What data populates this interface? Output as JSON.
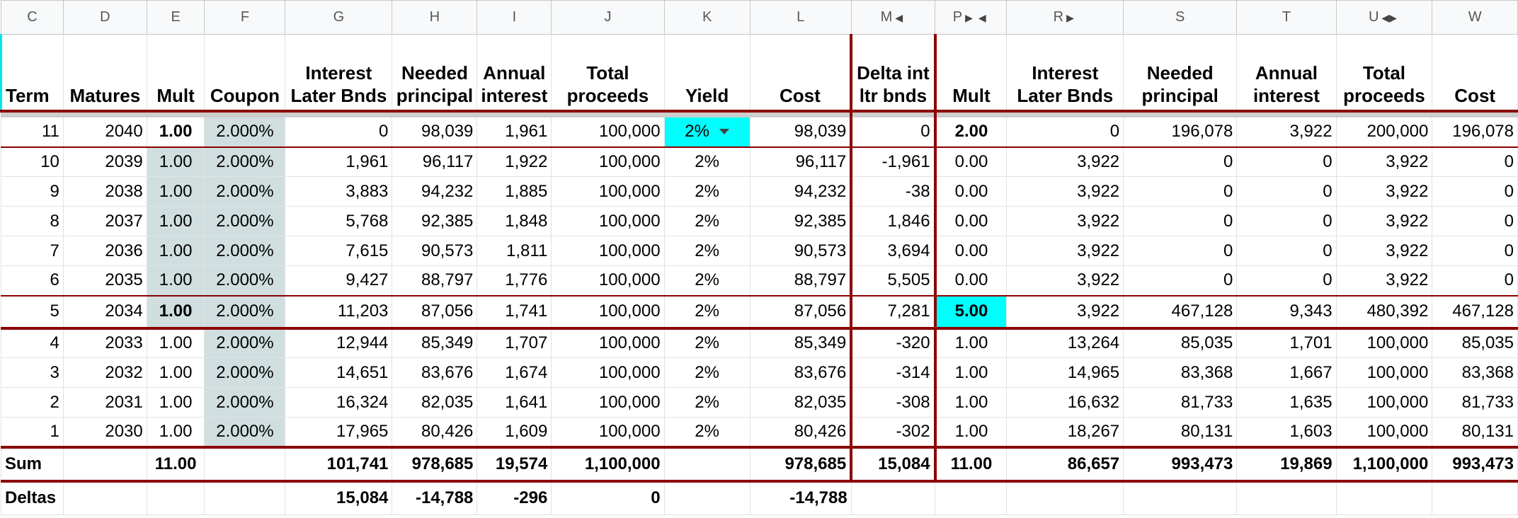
{
  "column_letters": [
    "C",
    "D",
    "E",
    "F",
    "G",
    "H",
    "I",
    "J",
    "K",
    "L",
    "M",
    "P",
    "R",
    "S",
    "T",
    "U",
    "W"
  ],
  "header_labels": [
    "Term",
    "Matures",
    "Mult",
    "Coupon",
    "Interest Later Bnds",
    "Needed principal",
    "Annual interest",
    "Total proceeds",
    "Yield",
    "Cost",
    "Delta int ltr bnds",
    "Mult",
    "Interest Later Bnds",
    "Needed principal",
    "Annual interest",
    "Total proceeds",
    "Cost"
  ],
  "rows": [
    {
      "term": "11",
      "matures": "2040",
      "mult": "1.00",
      "coupon": "2.000%",
      "interest": "0",
      "needed": "98,039",
      "annual": "1,961",
      "total": "100,000",
      "yield": "2%",
      "cost": "98,039",
      "delta": "0",
      "mult2": "2.00",
      "interest2": "0",
      "needed2": "196,078",
      "annual2": "3,922",
      "total2": "200,000",
      "cost2": "196,078"
    },
    {
      "term": "10",
      "matures": "2039",
      "mult": "1.00",
      "coupon": "2.000%",
      "interest": "1,961",
      "needed": "96,117",
      "annual": "1,922",
      "total": "100,000",
      "yield": "2%",
      "cost": "96,117",
      "delta": "-1,961",
      "mult2": "0.00",
      "interest2": "3,922",
      "needed2": "0",
      "annual2": "0",
      "total2": "3,922",
      "cost2": "0"
    },
    {
      "term": "9",
      "matures": "2038",
      "mult": "1.00",
      "coupon": "2.000%",
      "interest": "3,883",
      "needed": "94,232",
      "annual": "1,885",
      "total": "100,000",
      "yield": "2%",
      "cost": "94,232",
      "delta": "-38",
      "mult2": "0.00",
      "interest2": "3,922",
      "needed2": "0",
      "annual2": "0",
      "total2": "3,922",
      "cost2": "0"
    },
    {
      "term": "8",
      "matures": "2037",
      "mult": "1.00",
      "coupon": "2.000%",
      "interest": "5,768",
      "needed": "92,385",
      "annual": "1,848",
      "total": "100,000",
      "yield": "2%",
      "cost": "92,385",
      "delta": "1,846",
      "mult2": "0.00",
      "interest2": "3,922",
      "needed2": "0",
      "annual2": "0",
      "total2": "3,922",
      "cost2": "0"
    },
    {
      "term": "7",
      "matures": "2036",
      "mult": "1.00",
      "coupon": "2.000%",
      "interest": "7,615",
      "needed": "90,573",
      "annual": "1,811",
      "total": "100,000",
      "yield": "2%",
      "cost": "90,573",
      "delta": "3,694",
      "mult2": "0.00",
      "interest2": "3,922",
      "needed2": "0",
      "annual2": "0",
      "total2": "3,922",
      "cost2": "0"
    },
    {
      "term": "6",
      "matures": "2035",
      "mult": "1.00",
      "coupon": "2.000%",
      "interest": "9,427",
      "needed": "88,797",
      "annual": "1,776",
      "total": "100,000",
      "yield": "2%",
      "cost": "88,797",
      "delta": "5,505",
      "mult2": "0.00",
      "interest2": "3,922",
      "needed2": "0",
      "annual2": "0",
      "total2": "3,922",
      "cost2": "0"
    },
    {
      "term": "5",
      "matures": "2034",
      "mult": "1.00",
      "coupon": "2.000%",
      "interest": "11,203",
      "needed": "87,056",
      "annual": "1,741",
      "total": "100,000",
      "yield": "2%",
      "cost": "87,056",
      "delta": "7,281",
      "mult2": "5.00",
      "interest2": "3,922",
      "needed2": "467,128",
      "annual2": "9,343",
      "total2": "480,392",
      "cost2": "467,128"
    },
    {
      "term": "4",
      "matures": "2033",
      "mult": "1.00",
      "coupon": "2.000%",
      "interest": "12,944",
      "needed": "85,349",
      "annual": "1,707",
      "total": "100,000",
      "yield": "2%",
      "cost": "85,349",
      "delta": "-320",
      "mult2": "1.00",
      "interest2": "13,264",
      "needed2": "85,035",
      "annual2": "1,701",
      "total2": "100,000",
      "cost2": "85,035"
    },
    {
      "term": "3",
      "matures": "2032",
      "mult": "1.00",
      "coupon": "2.000%",
      "interest": "14,651",
      "needed": "83,676",
      "annual": "1,674",
      "total": "100,000",
      "yield": "2%",
      "cost": "83,676",
      "delta": "-314",
      "mult2": "1.00",
      "interest2": "14,965",
      "needed2": "83,368",
      "annual2": "1,667",
      "total2": "100,000",
      "cost2": "83,368"
    },
    {
      "term": "2",
      "matures": "2031",
      "mult": "1.00",
      "coupon": "2.000%",
      "interest": "16,324",
      "needed": "82,035",
      "annual": "1,641",
      "total": "100,000",
      "yield": "2%",
      "cost": "82,035",
      "delta": "-308",
      "mult2": "1.00",
      "interest2": "16,632",
      "needed2": "81,733",
      "annual2": "1,635",
      "total2": "100,000",
      "cost2": "81,733"
    },
    {
      "term": "1",
      "matures": "2030",
      "mult": "1.00",
      "coupon": "2.000%",
      "interest": "17,965",
      "needed": "80,426",
      "annual": "1,609",
      "total": "100,000",
      "yield": "2%",
      "cost": "80,426",
      "delta": "-302",
      "mult2": "1.00",
      "interest2": "18,267",
      "needed2": "80,131",
      "annual2": "1,603",
      "total2": "100,000",
      "cost2": "80,131"
    }
  ],
  "sum_row": {
    "label": "Sum",
    "mult": "11.00",
    "interest": "101,741",
    "needed": "978,685",
    "annual": "19,574",
    "total": "1,100,000",
    "cost": "978,685",
    "delta": "15,084",
    "mult2": "11.00",
    "interest2": "86,657",
    "needed2": "993,473",
    "annual2": "19,869",
    "total2": "1,100,000",
    "cost2": "993,473"
  },
  "deltas_row": {
    "label": "Deltas",
    "interest": "15,084",
    "needed": "-14,788",
    "annual": "-296",
    "total": "0",
    "cost": "-14,788"
  },
  "colors": {
    "accent_border": "#8b0000",
    "cyan_highlight": "#00ffff",
    "shaded_input": "#d0dee0"
  },
  "icons": {
    "dropdown": "chevron-down-icon",
    "group_left": "triangle-left-icon",
    "group_right": "triangle-right-icon"
  }
}
